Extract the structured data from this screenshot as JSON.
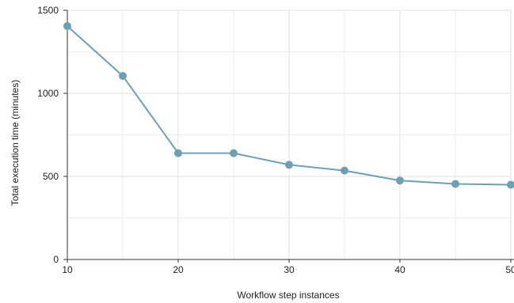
{
  "chart_data": {
    "type": "line",
    "title": "",
    "xlabel": "Workflow step instances",
    "ylabel": "Total execution time (minutes)",
    "x_ticks": [
      "10",
      "20",
      "30",
      "40",
      "50"
    ],
    "y_ticks": [
      "0",
      "500",
      "1000",
      "1500"
    ],
    "xlim": [
      10,
      50
    ],
    "ylim": [
      0,
      1500
    ],
    "grid": true,
    "series": [
      {
        "x": [
          10,
          15,
          20,
          25,
          30,
          35,
          40,
          45,
          50
        ],
        "y": [
          1405,
          1105,
          640,
          640,
          570,
          535,
          475,
          455,
          450
        ],
        "color": "#6f9fb3"
      }
    ]
  }
}
